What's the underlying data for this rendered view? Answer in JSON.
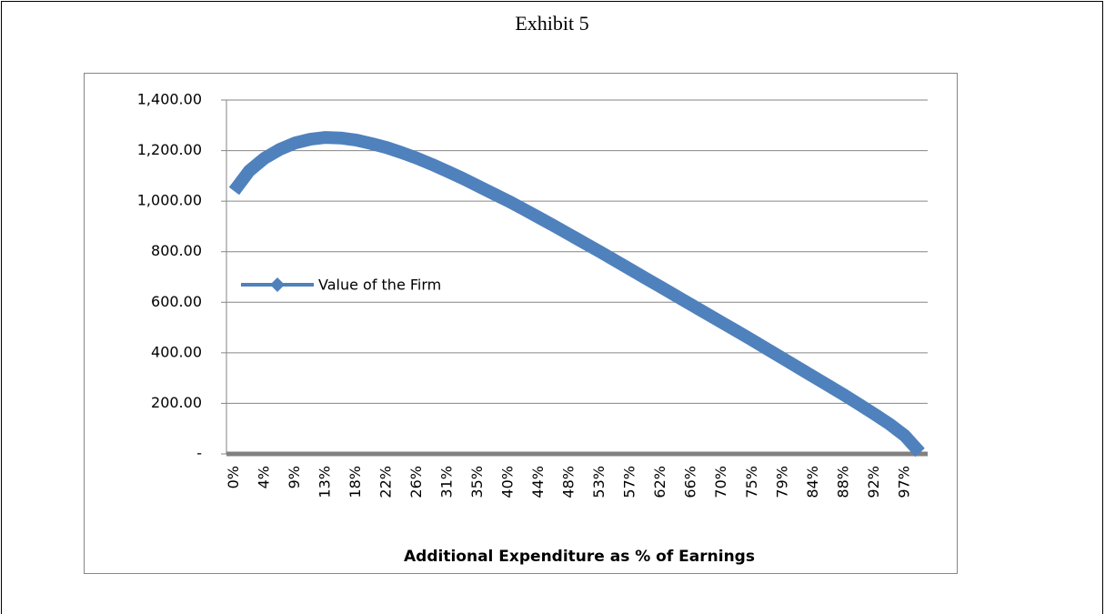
{
  "chart_data": {
    "type": "line",
    "title": "Exhibit 5",
    "x_label": "Additional Expenditure as % of Earnings",
    "categories": [
      "0%",
      null,
      "4%",
      null,
      "9%",
      null,
      "13%",
      null,
      "18%",
      null,
      "22%",
      null,
      "26%",
      null,
      "31%",
      null,
      "35%",
      null,
      "40%",
      null,
      "44%",
      null,
      "48%",
      null,
      "53%",
      null,
      "57%",
      null,
      "62%",
      null,
      "66%",
      null,
      "70%",
      null,
      "75%",
      null,
      "79%",
      null,
      "84%",
      null,
      "88%",
      null,
      "92%",
      null,
      "97%",
      null
    ],
    "series": [
      {
        "name": "Value of the Firm",
        "color": "#4f81bd",
        "values": [
          1040,
          1120,
          1170,
          1205,
          1230,
          1245,
          1252,
          1250,
          1242,
          1228,
          1212,
          1192,
          1170,
          1145,
          1118,
          1090,
          1060,
          1030,
          1000,
          968,
          935,
          902,
          868,
          834,
          800,
          765,
          730,
          695,
          660,
          625,
          590,
          555,
          520,
          485,
          450,
          414,
          378,
          342,
          306,
          270,
          234,
          196,
          158,
          118,
          72,
          5
        ]
      }
    ],
    "ylim": [
      0,
      1400
    ],
    "yticks": [
      {
        "value": 0,
        "label": "-"
      },
      {
        "value": 200,
        "label": "200.00"
      },
      {
        "value": 400,
        "label": "400.00"
      },
      {
        "value": 600,
        "label": "600.00"
      },
      {
        "value": 800,
        "label": "800.00"
      },
      {
        "value": 1000,
        "label": "1,000.00"
      },
      {
        "value": 1200,
        "label": "1,200.00"
      },
      {
        "value": 1400,
        "label": "1,400.00"
      }
    ],
    "grid": true,
    "legend_position": "left"
  }
}
